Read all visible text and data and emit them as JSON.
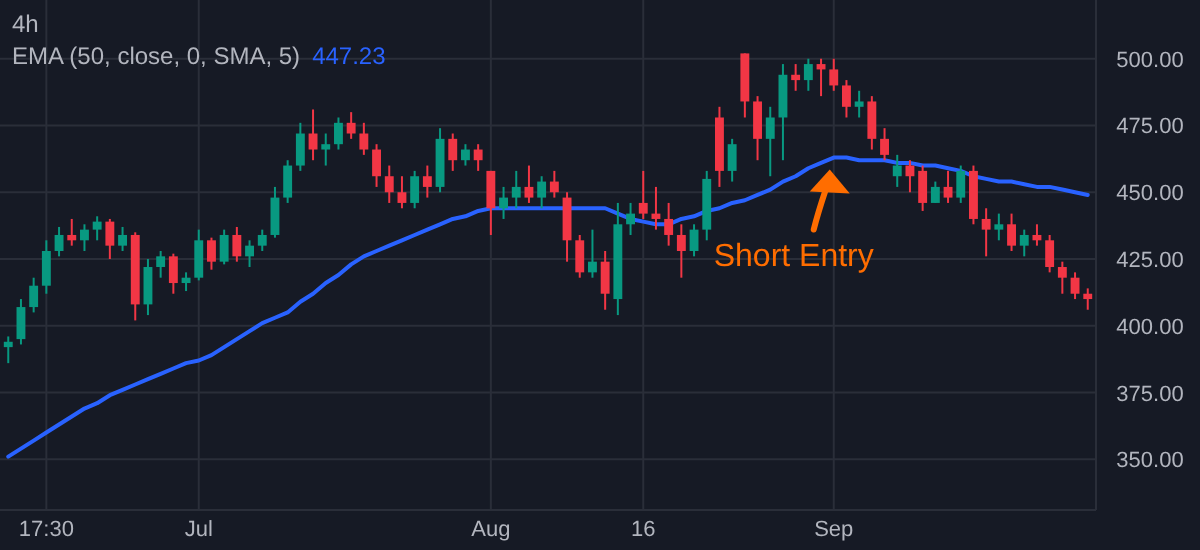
{
  "chart_data": {
    "type": "candlestick",
    "title": "4h",
    "categories": [
      null,
      null,
      null,
      "17:30",
      null,
      null,
      null,
      null,
      null,
      null,
      null,
      null,
      null,
      null,
      null,
      "Jul",
      null,
      null,
      null,
      null,
      null,
      null,
      null,
      null,
      null,
      null,
      null,
      null,
      null,
      null,
      null,
      null,
      null,
      null,
      null,
      null,
      null,
      null,
      "Aug",
      null,
      null,
      null,
      null,
      null,
      null,
      null,
      null,
      null,
      null,
      null,
      "16",
      null,
      null,
      null,
      null,
      null,
      null,
      null,
      null,
      null,
      null,
      null,
      null,
      null,
      null,
      "Sep",
      null,
      null,
      null,
      null,
      null,
      null,
      null,
      null,
      null,
      null,
      null,
      null,
      null,
      null,
      null,
      null,
      null,
      null,
      null,
      null
    ],
    "ohlc": [
      [
        392,
        396,
        386,
        394
      ],
      [
        395,
        410,
        393,
        407
      ],
      [
        407,
        418,
        405,
        415
      ],
      [
        415,
        432,
        412,
        428
      ],
      [
        428,
        437,
        426,
        434
      ],
      [
        434,
        440,
        430,
        432
      ],
      [
        432,
        438,
        428,
        436
      ],
      [
        436,
        441,
        432,
        439
      ],
      [
        439,
        440,
        425,
        430
      ],
      [
        430,
        437,
        428,
        434
      ],
      [
        434,
        435,
        402,
        408
      ],
      [
        408,
        425,
        404,
        422
      ],
      [
        422,
        428,
        418,
        426
      ],
      [
        426,
        427,
        412,
        416
      ],
      [
        416,
        420,
        413,
        418
      ],
      [
        418,
        436,
        417,
        432
      ],
      [
        432,
        433,
        421,
        424
      ],
      [
        424,
        436,
        423,
        434
      ],
      [
        434,
        437,
        424,
        426
      ],
      [
        426,
        432,
        422,
        430
      ],
      [
        430,
        436,
        428,
        434
      ],
      [
        434,
        452,
        433,
        448
      ],
      [
        448,
        462,
        446,
        460
      ],
      [
        460,
        476,
        458,
        472
      ],
      [
        472,
        481,
        462,
        466
      ],
      [
        466,
        472,
        460,
        468
      ],
      [
        468,
        478,
        466,
        476
      ],
      [
        476,
        480,
        470,
        472
      ],
      [
        472,
        476,
        464,
        466
      ],
      [
        466,
        468,
        452,
        456
      ],
      [
        456,
        460,
        446,
        450
      ],
      [
        450,
        456,
        444,
        446
      ],
      [
        446,
        458,
        444,
        456
      ],
      [
        456,
        460,
        448,
        452
      ],
      [
        452,
        474,
        450,
        470
      ],
      [
        470,
        472,
        458,
        462
      ],
      [
        462,
        468,
        460,
        466
      ],
      [
        466,
        468,
        458,
        462
      ],
      [
        458,
        458,
        434,
        444
      ],
      [
        444,
        452,
        440,
        448
      ],
      [
        448,
        458,
        444,
        452
      ],
      [
        452,
        460,
        446,
        448
      ],
      [
        448,
        456,
        444,
        454
      ],
      [
        454,
        458,
        448,
        450
      ],
      [
        448,
        450,
        424,
        432
      ],
      [
        432,
        434,
        418,
        420
      ],
      [
        420,
        436,
        418,
        424
      ],
      [
        424,
        428,
        406,
        412
      ],
      [
        410,
        446,
        404,
        438
      ],
      [
        438,
        446,
        434,
        442
      ],
      [
        446,
        458,
        440,
        442
      ],
      [
        442,
        452,
        436,
        440
      ],
      [
        440,
        446,
        430,
        434
      ],
      [
        434,
        438,
        418,
        428
      ],
      [
        428,
        438,
        426,
        436
      ],
      [
        436,
        458,
        432,
        455
      ],
      [
        478,
        482,
        452,
        458
      ],
      [
        458,
        470,
        454,
        468
      ],
      [
        502,
        502,
        478,
        484
      ],
      [
        484,
        486,
        462,
        470
      ],
      [
        470,
        482,
        456,
        478
      ],
      [
        478,
        498,
        462,
        494
      ],
      [
        494,
        498,
        488,
        492
      ],
      [
        492,
        500,
        488,
        498
      ],
      [
        498,
        500,
        486,
        496
      ],
      [
        496,
        500,
        488,
        490
      ],
      [
        490,
        492,
        478,
        482
      ],
      [
        482,
        488,
        478,
        484
      ],
      [
        484,
        486,
        466,
        470
      ],
      [
        470,
        474,
        462,
        464
      ],
      [
        456,
        464,
        452,
        460
      ],
      [
        460,
        462,
        450,
        456
      ],
      [
        458,
        460,
        443,
        446
      ],
      [
        446,
        454,
        446,
        452
      ],
      [
        452,
        458,
        446,
        448
      ],
      [
        448,
        460,
        446,
        458
      ],
      [
        458,
        460,
        438,
        440
      ],
      [
        440,
        444,
        426,
        436
      ],
      [
        436,
        442,
        432,
        438
      ],
      [
        438,
        442,
        428,
        430
      ],
      [
        430,
        436,
        426,
        434
      ],
      [
        434,
        438,
        430,
        432
      ],
      [
        432,
        434,
        420,
        422
      ],
      [
        422,
        424,
        412,
        418
      ],
      [
        418,
        420,
        410,
        412
      ],
      [
        412,
        414,
        406,
        410
      ]
    ],
    "series": [
      {
        "name": "EMA (50, close, 0, SMA, 5)",
        "type": "line",
        "color": "#2962ff",
        "values": [
          351,
          354,
          357,
          360,
          363,
          366,
          369,
          371,
          374,
          376,
          378,
          380,
          382,
          384,
          386,
          387,
          389,
          392,
          395,
          398,
          401,
          403,
          405,
          409,
          412,
          416,
          419,
          423,
          426,
          428,
          430,
          432,
          434,
          436,
          438,
          440,
          441,
          443,
          444,
          444,
          444,
          444,
          444,
          444,
          444,
          444,
          444,
          444,
          442,
          440,
          439,
          438,
          438,
          440,
          441,
          443,
          444,
          446,
          447,
          449,
          451,
          454,
          456,
          459,
          461,
          463,
          463,
          462,
          462,
          462,
          461,
          461,
          460,
          460,
          459,
          458,
          456,
          455,
          454,
          454,
          453,
          452,
          452,
          451,
          450,
          449
        ]
      }
    ],
    "colors": [
      "#089981",
      "#089981",
      "#089981",
      "#089981",
      "#089981",
      "#f23645",
      "#089981",
      "#089981",
      "#f23645",
      "#089981",
      "#f23645",
      "#089981",
      "#089981",
      "#f23645",
      "#089981",
      "#089981",
      "#f23645",
      "#089981",
      "#f23645",
      "#089981",
      "#089981",
      "#089981",
      "#089981",
      "#089981",
      "#f23645",
      "#089981",
      "#089981",
      "#f23645",
      "#f23645",
      "#f23645",
      "#f23645",
      "#f23645",
      "#089981",
      "#f23645",
      "#089981",
      "#f23645",
      "#089981",
      "#f23645",
      "#f23645",
      "#089981",
      "#089981",
      "#f23645",
      "#089981",
      "#f23645",
      "#f23645",
      "#f23645",
      "#089981",
      "#f23645",
      "#089981",
      "#089981",
      "#f23645",
      "#f23645",
      "#f23645",
      "#f23645",
      "#089981",
      "#089981",
      "#f23645",
      "#089981",
      "#f23645",
      "#f23645",
      "#089981",
      "#089981",
      "#f23645",
      "#089981",
      "#f23645",
      "#f23645",
      "#f23645",
      "#089981",
      "#f23645",
      "#f23645",
      "#089981",
      "#f23645",
      "#f23645",
      "#089981",
      "#f23645",
      "#089981",
      "#f23645",
      "#f23645",
      "#089981",
      "#f23645",
      "#089981",
      "#f23645",
      "#f23645",
      "#f23645",
      "#f23645",
      "#f23645"
    ],
    "annotations": [
      "447.23",
      "Short Entry"
    ],
    "ylim": [
      331,
      522
    ],
    "yticks": [
      {
        "value": 350,
        "label": "350.00"
      },
      {
        "value": 375,
        "label": "375.00"
      },
      {
        "value": 400,
        "label": "400.00"
      },
      {
        "value": 425,
        "label": "425.00"
      },
      {
        "value": 450,
        "label": "450.00"
      },
      {
        "value": 475,
        "label": "475.00"
      },
      {
        "value": 500,
        "label": "500.00"
      }
    ],
    "grid": true,
    "legend": "top left"
  }
}
